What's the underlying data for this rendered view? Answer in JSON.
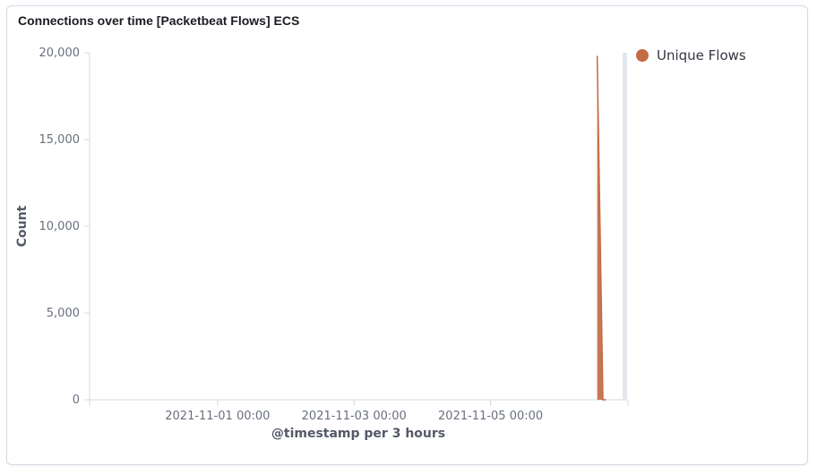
{
  "panel": {
    "title": "Connections over time [Packetbeat Flows] ECS"
  },
  "colors": {
    "series": "#c46a45",
    "series_fill": "#c67854",
    "axis": "#d3dae6",
    "cursor": "#e3e6eb"
  },
  "chart_data": {
    "type": "area",
    "xlabel": "@timestamp per 3 hours",
    "ylabel": "Count",
    "ylim": [
      0,
      20000
    ],
    "yticks": [
      0,
      5000,
      10000,
      15000,
      20000
    ],
    "ytick_labels": [
      "0",
      "5,000",
      "10,000",
      "15,000",
      "20,000"
    ],
    "xlim": [
      "2021-10-30T03:00",
      "2021-11-07T00:00"
    ],
    "xticks": [
      "2021-11-01T00:00",
      "2021-11-03T00:00",
      "2021-11-05T00:00"
    ],
    "xtick_labels": [
      "2021-11-01 00:00",
      "2021-11-03 00:00",
      "2021-11-05 00:00"
    ],
    "legend_position": "top-right",
    "series": [
      {
        "name": "Unique Flows",
        "x": [
          "2021-11-06T13:30",
          "2021-11-06T15:30",
          "2021-11-06T16:30"
        ],
        "values": [
          19800,
          0,
          0
        ]
      }
    ]
  }
}
